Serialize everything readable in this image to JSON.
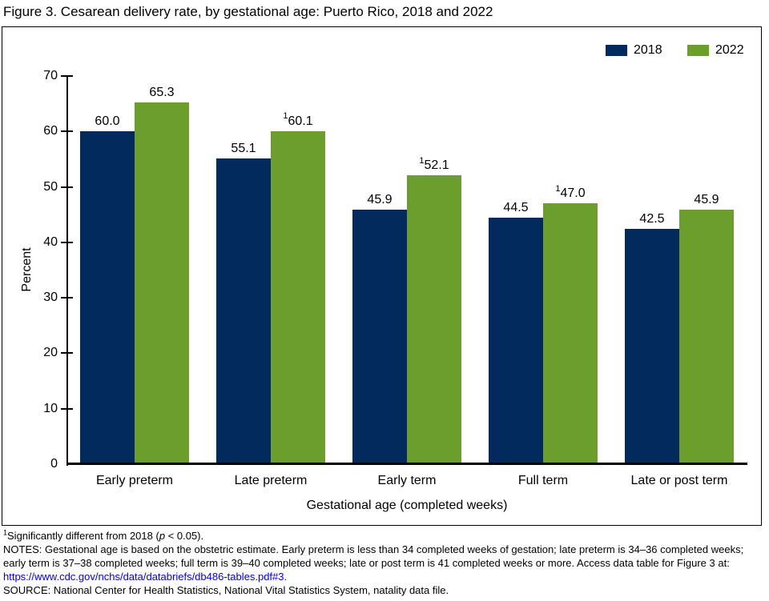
{
  "title": "Figure 3. Cesarean delivery rate, by gestational age: Puerto Rico, 2018 and 2022",
  "chart_data": {
    "type": "bar",
    "title": "Figure 3. Cesarean delivery rate, by gestational age: Puerto Rico, 2018 and 2022",
    "categories": [
      "Early preterm",
      "Late preterm",
      "Early term",
      "Full term",
      "Late or post term"
    ],
    "series": [
      {
        "name": "2018",
        "color": "#032a5c",
        "values": [
          60.0,
          55.1,
          45.9,
          44.5,
          42.5
        ],
        "labels": [
          "60.0",
          "55.1",
          "45.9",
          "44.5",
          "42.5"
        ],
        "significant": [
          false,
          false,
          false,
          false,
          false
        ]
      },
      {
        "name": "2022",
        "color": "#6c9e2e",
        "values": [
          65.3,
          60.1,
          52.1,
          47.0,
          45.9
        ],
        "labels": [
          "65.3",
          "60.1",
          "52.1",
          "47.0",
          "45.9"
        ],
        "significant": [
          false,
          true,
          true,
          true,
          false
        ]
      }
    ],
    "superscript_marker": "1",
    "xlabel": "Gestational age (completed weeks)",
    "ylabel": "Percent",
    "ylim": [
      0,
      70
    ],
    "yticks": [
      0,
      10,
      20,
      30,
      40,
      50,
      60,
      70
    ],
    "grid": false,
    "legend_position": "top-right"
  },
  "footnotes": {
    "significance": {
      "sup": "1",
      "pre": "Significantly different from 2018 (",
      "italic": "p",
      "post": " < 0.05)."
    },
    "notes": "NOTES: Gestational age is based on the obstetric estimate. Early preterm is less than 34 completed weeks of gestation; late preterm is 34–36 completed weeks; early term is 37–38 completed weeks; full term is 39–40 completed weeks; late or post term is 41 completed weeks or more. Access data table for Figure 3 at:",
    "link_text": "https://www.cdc.gov/nchs/data/databriefs/db486-tables.pdf#3.",
    "link_color": "#0000EE",
    "source": "SOURCE: National Center for Health Statistics, National Vital Statistics System, natality data file."
  }
}
